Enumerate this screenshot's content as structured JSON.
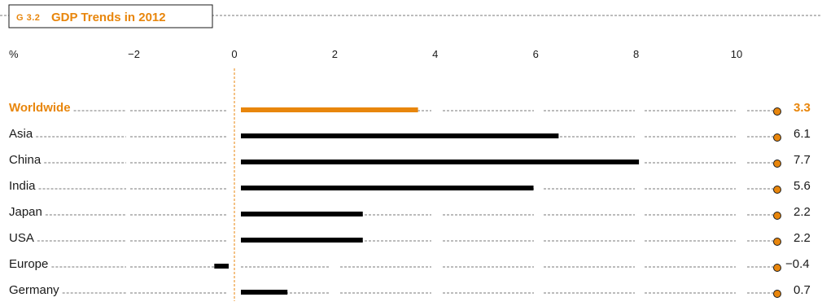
{
  "chart_data": {
    "type": "bar",
    "orientation": "horizontal",
    "title_prefix": "G 3.2",
    "title": "GDP Trends in 2012",
    "unit_label": "%",
    "x_ticks": [
      -2,
      0,
      2,
      4,
      6,
      8,
      10
    ],
    "x_tick_labels": [
      "−2",
      "0",
      "2",
      "4",
      "6",
      "8",
      "10"
    ],
    "xlim": [
      -2.8,
      11
    ],
    "categories": [
      "Worldwide",
      "Asia",
      "China",
      "India",
      "Japan",
      "USA",
      "Europe",
      "Germany"
    ],
    "values": [
      3.3,
      6.1,
      7.7,
      5.6,
      2.2,
      2.2,
      -0.4,
      0.7
    ],
    "value_labels": [
      "3.3",
      "6.1",
      "7.7",
      "5.6",
      "2.2",
      "2.2",
      "−0.4",
      "0.7"
    ],
    "highlight_category": "Worldwide",
    "colors": {
      "accent": "#e8860c",
      "bar": "#000000",
      "text": "#1a1a1a",
      "dots": "#7a7a7a"
    }
  }
}
